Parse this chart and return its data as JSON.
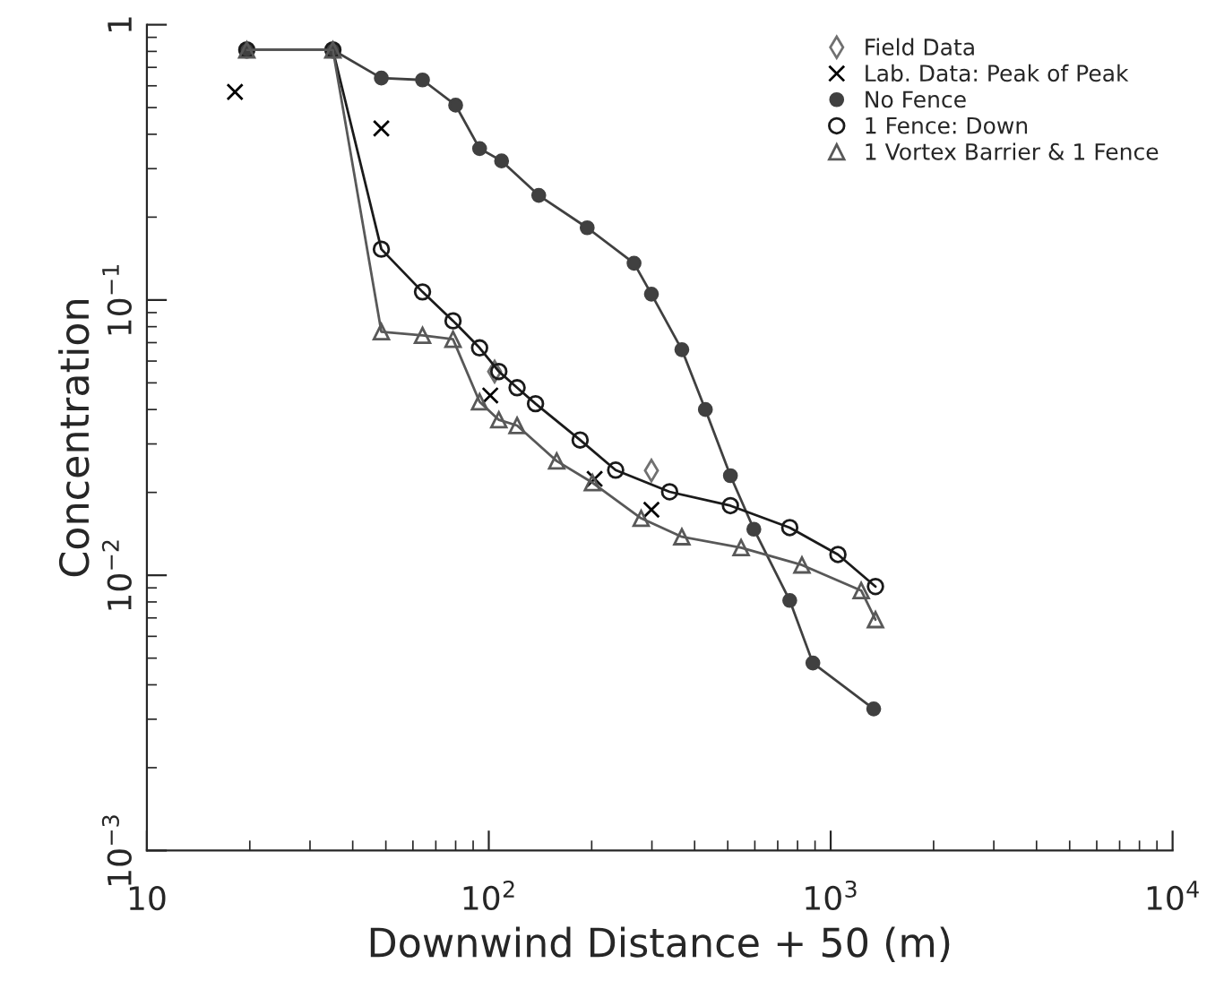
{
  "chart_data": {
    "type": "line",
    "xlabel": "Downwind Distance + 50 (m)",
    "ylabel": "Concentration",
    "log": "xy",
    "xlim": [
      10,
      10000
    ],
    "ylim": [
      0.001,
      1
    ],
    "xticks": [
      {
        "value": 10,
        "label": "10"
      },
      {
        "value": 100,
        "label": "10$^{2}$"
      },
      {
        "value": 1000,
        "label": "10$^{3}$"
      },
      {
        "value": 10000,
        "label": "10$^{4}$"
      }
    ],
    "yticks": [
      {
        "value": 0.001,
        "label": "10$^{−3}$"
      },
      {
        "value": 0.01,
        "label": "10$^{−2}$"
      },
      {
        "value": 0.1,
        "label": "10$^{−1}$"
      },
      {
        "value": 1,
        "label": "1"
      }
    ],
    "grid": false,
    "legend": "top right",
    "series": [
      {
        "name": "Field Data",
        "type": "scatter",
        "marker": "diamond",
        "color": "#707070",
        "x": [
          104,
          299
        ],
        "values": [
          0.055,
          0.024
        ]
      },
      {
        "name": "Lab. Data: Peak of Peak",
        "type": "scatter",
        "marker": "cross",
        "color": "#000000",
        "x": [
          18.1,
          48.5,
          101,
          204,
          299
        ],
        "values": [
          0.57,
          0.42,
          0.045,
          0.0224,
          0.0173
        ]
      },
      {
        "name": "No Fence",
        "marker": "dot",
        "color": "#404040",
        "x": [
          19.6,
          35,
          48.5,
          64,
          80,
          94,
          109,
          140,
          194,
          266,
          299,
          367,
          430,
          509,
          596,
          759,
          887,
          1336
        ],
        "values": [
          0.81,
          0.81,
          0.64,
          0.63,
          0.51,
          0.355,
          0.32,
          0.24,
          0.183,
          0.136,
          0.105,
          0.066,
          0.04,
          0.023,
          0.0147,
          0.0081,
          0.0048,
          0.00327
        ]
      },
      {
        "name": "1 Fence: Down",
        "marker": "circle",
        "color": "#1a1a1a",
        "x": [
          19.6,
          35,
          48.5,
          64,
          78.6,
          94,
          107,
          121,
          137,
          185,
          235,
          338,
          509,
          759,
          1050,
          1352
        ],
        "values": [
          0.81,
          0.81,
          0.153,
          0.107,
          0.084,
          0.067,
          0.055,
          0.048,
          0.042,
          0.031,
          0.0241,
          0.0201,
          0.0179,
          0.0149,
          0.0119,
          0.0091
        ]
      },
      {
        "name": "1 Vortex Barrier & 1 Fence",
        "marker": "triangle",
        "color": "#585858",
        "x": [
          19.6,
          35,
          48.5,
          64,
          78.6,
          94,
          107,
          121,
          158,
          201,
          279,
          367,
          547,
          824,
          1228,
          1352
        ],
        "values": [
          0.81,
          0.81,
          0.0767,
          0.0744,
          0.072,
          0.0427,
          0.0367,
          0.035,
          0.026,
          0.0217,
          0.0161,
          0.0138,
          0.0126,
          0.0109,
          0.0088,
          0.0069
        ]
      }
    ]
  }
}
